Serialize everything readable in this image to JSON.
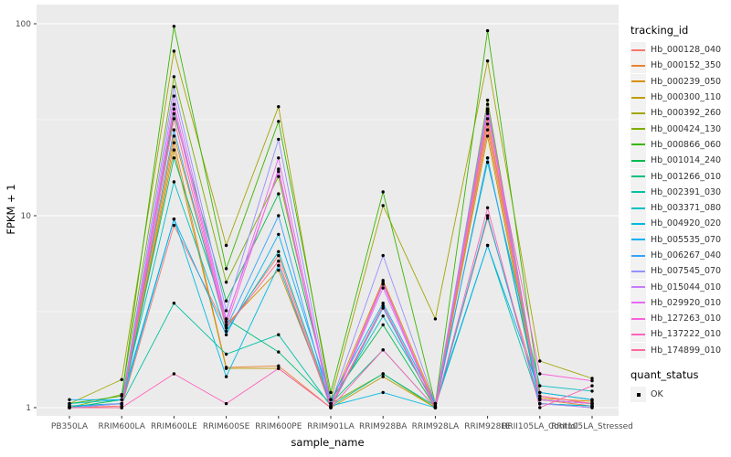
{
  "figure": {
    "background": "#FFFFFF",
    "panel_background": "#EBEBEB",
    "grid_major_color": "#FFFFFF",
    "grid_minor_color": "#FFFFFF",
    "tick_label_color": "#4D4D4D",
    "point_color": "#000000"
  },
  "chart_data": {
    "type": "line",
    "title": "",
    "xlabel": "sample_name",
    "ylabel": "FPKM + 1",
    "y_scale": "log10",
    "y_ticks": [
      1,
      10,
      100
    ],
    "y_minor_ticks": [
      3.162,
      31.62
    ],
    "ylim": [
      0.9,
      126
    ],
    "grid": true,
    "legend_position": "right",
    "categories": [
      "PB350LA",
      "RRIM600LA",
      "RRIM600LE",
      "RRIM600SE",
      "RRIM600PE",
      "RRIM901LA",
      "RRIM928BA",
      "RRIM928LA",
      "RRIM928LE",
      "RRII105LA_Control",
      "RRII105LA_Stressed"
    ],
    "series": [
      {
        "name": "Hb_000128_040",
        "color": "#F8766D",
        "values": [
          1.0,
          1.02,
          8.9,
          2.6,
          6.2,
          1.02,
          3.4,
          1.0,
          9.7,
          1.15,
          1.05
        ]
      },
      {
        "name": "Hb_000152_350",
        "color": "#EA8331",
        "values": [
          1.0,
          1.0,
          24,
          1.62,
          1.65,
          1.0,
          4.4,
          1.02,
          28,
          1.1,
          1.02
        ]
      },
      {
        "name": "Hb_000239_050",
        "color": "#D89000",
        "values": [
          1.02,
          1.05,
          26,
          2.7,
          5.2,
          1.05,
          4.6,
          1.05,
          32,
          1.12,
          1.08
        ]
      },
      {
        "name": "Hb_000300_110",
        "color": "#C09B00",
        "values": [
          1.0,
          1.0,
          22,
          1.6,
          1.6,
          1.0,
          1.45,
          1.0,
          26,
          1.05,
          1.02
        ]
      },
      {
        "name": "Hb_000392_260",
        "color": "#A3A500",
        "values": [
          1.05,
          1.4,
          72,
          7.0,
          37,
          1.1,
          11.3,
          2.9,
          64,
          1.75,
          1.42
        ]
      },
      {
        "name": "Hb_000424_130",
        "color": "#7CAE00",
        "values": [
          1.0,
          1.17,
          53,
          4.5,
          16,
          1.05,
          1.5,
          1.0,
          40,
          1.1,
          1.05
        ]
      },
      {
        "name": "Hb_000866_060",
        "color": "#39B600",
        "values": [
          1.05,
          1.15,
          97,
          5.3,
          31,
          1.2,
          13.3,
          1.05,
          92,
          1.2,
          1.1
        ]
      },
      {
        "name": "Hb_001014_240",
        "color": "#00BB4E",
        "values": [
          1.0,
          1.1,
          34,
          3.6,
          13,
          1.1,
          2.7,
          1.0,
          36,
          1.1,
          1.05
        ]
      },
      {
        "name": "Hb_001266_010",
        "color": "#00BF7D",
        "values": [
          1.0,
          1.05,
          20,
          2.9,
          1.95,
          1.05,
          2.0,
          1.0,
          20,
          1.05,
          1.0
        ]
      },
      {
        "name": "Hb_002391_030",
        "color": "#00C1A3",
        "values": [
          1.02,
          1.05,
          3.5,
          1.9,
          2.4,
          1.02,
          1.5,
          1.02,
          7.0,
          1.05,
          1.02
        ]
      },
      {
        "name": "Hb_003371_080",
        "color": "#00BFC4",
        "values": [
          1.05,
          1.1,
          15,
          2.5,
          6.5,
          1.05,
          3.0,
          1.05,
          19,
          1.3,
          1.22
        ]
      },
      {
        "name": "Hb_004920_020",
        "color": "#00BAE0",
        "values": [
          1.02,
          1.05,
          9.6,
          1.45,
          5.5,
          1.02,
          1.2,
          1.0,
          10,
          1.05,
          1.02
        ]
      },
      {
        "name": "Hb_005535_070",
        "color": "#00B0F6",
        "values": [
          1.1,
          1.1,
          9.6,
          2.4,
          8.0,
          1.1,
          3.5,
          1.05,
          7.0,
          1.2,
          1.1
        ]
      },
      {
        "name": "Hb_006267_040",
        "color": "#35A2FF",
        "values": [
          1.0,
          1.05,
          28,
          2.6,
          10,
          1.0,
          3.3,
          1.0,
          20,
          1.1,
          1.05
        ]
      },
      {
        "name": "Hb_007545_070",
        "color": "#9590FF",
        "values": [
          1.0,
          1.05,
          47,
          3.2,
          25,
          1.05,
          6.2,
          1.05,
          38,
          1.1,
          1.05
        ]
      },
      {
        "name": "Hb_015044_010",
        "color": "#C77CFF",
        "values": [
          1.0,
          1.0,
          42,
          2.9,
          17,
          1.0,
          4.2,
          1.0,
          36,
          1.05,
          1.0
        ]
      },
      {
        "name": "Hb_029920_010",
        "color": "#E76BF3",
        "values": [
          1.0,
          1.0,
          38,
          2.8,
          20,
          1.0,
          4.5,
          1.0,
          35,
          1.1,
          1.05
        ]
      },
      {
        "name": "Hb_127263_010",
        "color": "#FA62DB",
        "values": [
          1.0,
          1.0,
          36,
          2.65,
          17.5,
          1.0,
          4.4,
          1.0,
          34,
          1.5,
          1.38
        ]
      },
      {
        "name": "Hb_137222_010",
        "color": "#FF62BC",
        "values": [
          1.0,
          1.0,
          1.5,
          1.05,
          1.6,
          1.0,
          2.0,
          1.0,
          11,
          1.0,
          1.3
        ]
      },
      {
        "name": "Hb_174899_010",
        "color": "#FF6A98",
        "values": [
          1.0,
          1.0,
          32,
          2.6,
          5.8,
          1.0,
          3.4,
          1.0,
          30,
          1.15,
          1.05
        ]
      }
    ]
  },
  "legend": {
    "tracking_title": "tracking_id",
    "quant_title": "quant_status",
    "quant_items": [
      {
        "label": "OK"
      }
    ]
  }
}
